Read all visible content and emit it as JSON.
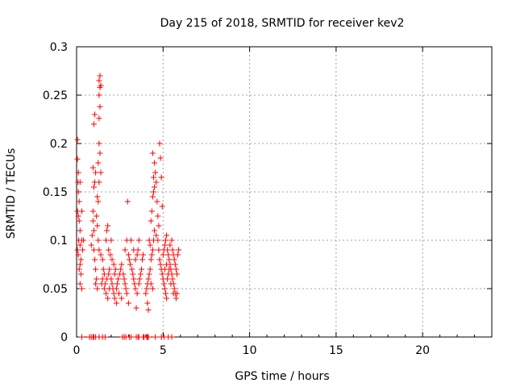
{
  "chart_data": {
    "type": "scatter",
    "title": "Day 215 of 2018, SRMTID for receiver kev2",
    "xlabel": "GPS time / hours",
    "ylabel": "SRMTID / TECUs",
    "xlim": [
      0,
      24
    ],
    "ylim": [
      0,
      0.3
    ],
    "xticks": [
      0,
      5,
      10,
      15,
      20
    ],
    "xtick_labels": [
      "0",
      "5",
      "10",
      "15",
      "20"
    ],
    "yticks": [
      0,
      0.05,
      0.1,
      0.15,
      0.2,
      0.25,
      0.3
    ],
    "ytick_labels": [
      "0",
      "0.05",
      "0.1",
      "0.15",
      "0.2",
      "0.25",
      "0.3"
    ],
    "grid": true,
    "marker": "+",
    "series": [
      {
        "name": "kev2",
        "color": "#ff0000",
        "points": [
          [
            0.05,
            0.204
          ],
          [
            0.05,
            0.184
          ],
          [
            0.08,
            0.16
          ],
          [
            0.1,
            0.15
          ],
          [
            0.05,
            0.13
          ],
          [
            0.1,
            0.125
          ],
          [
            0.15,
            0.12
          ],
          [
            0.2,
            0.11
          ],
          [
            0.12,
            0.1
          ],
          [
            0.2,
            0.095
          ],
          [
            0.05,
            0.09
          ],
          [
            0.1,
            0.085
          ],
          [
            0.25,
            0.08
          ],
          [
            0.2,
            0.075
          ],
          [
            0.15,
            0.07
          ],
          [
            0.25,
            0.065
          ],
          [
            0.2,
            0.055
          ],
          [
            0.3,
            0.05
          ],
          [
            0.3,
            0.1
          ],
          [
            0.35,
            0.09
          ],
          [
            0.3,
            0.13
          ],
          [
            0.4,
            0.1
          ],
          [
            0.15,
            0.14
          ],
          [
            0.2,
            0.16
          ],
          [
            0.1,
            0.17
          ],
          [
            0.85,
            0.095
          ],
          [
            0.9,
            0.105
          ],
          [
            0.95,
            0.12
          ],
          [
            0.95,
            0.13
          ],
          [
            1.0,
            0.11
          ],
          [
            1.0,
            0.09
          ],
          [
            1.05,
            0.08
          ],
          [
            1.1,
            0.07
          ],
          [
            1.15,
            0.06
          ],
          [
            1.1,
            0.055
          ],
          [
            1.2,
            0.05
          ],
          [
            1.0,
            0.155
          ],
          [
            1.05,
            0.16
          ],
          [
            1.1,
            0.17
          ],
          [
            0.95,
            0.175
          ],
          [
            1.0,
            0.22
          ],
          [
            1.05,
            0.23
          ],
          [
            1.2,
            0.145
          ],
          [
            1.25,
            0.14
          ],
          [
            1.3,
            0.25
          ],
          [
            1.3,
            0.265
          ],
          [
            1.35,
            0.27
          ],
          [
            1.35,
            0.258
          ],
          [
            1.4,
            0.26
          ],
          [
            1.35,
            0.238
          ],
          [
            1.3,
            0.226
          ],
          [
            1.3,
            0.2
          ],
          [
            1.35,
            0.19
          ],
          [
            1.25,
            0.18
          ],
          [
            1.4,
            0.17
          ],
          [
            1.3,
            0.16
          ],
          [
            1.15,
            0.125
          ],
          [
            1.2,
            0.115
          ],
          [
            1.25,
            0.1
          ],
          [
            1.3,
            0.09
          ],
          [
            1.4,
            0.085
          ],
          [
            1.5,
            0.08
          ],
          [
            1.55,
            0.07
          ],
          [
            1.6,
            0.065
          ],
          [
            1.5,
            0.06
          ],
          [
            1.45,
            0.055
          ],
          [
            1.6,
            0.05
          ],
          [
            1.7,
            0.045
          ],
          [
            1.8,
            0.04
          ],
          [
            1.65,
            0.055
          ],
          [
            1.75,
            0.06
          ],
          [
            1.85,
            0.065
          ],
          [
            1.9,
            0.07
          ],
          [
            2.0,
            0.06
          ],
          [
            2.05,
            0.055
          ],
          [
            2.1,
            0.05
          ],
          [
            2.15,
            0.045
          ],
          [
            2.2,
            0.04
          ],
          [
            2.3,
            0.05
          ],
          [
            2.35,
            0.055
          ],
          [
            2.4,
            0.06
          ],
          [
            2.5,
            0.065
          ],
          [
            2.55,
            0.07
          ],
          [
            2.6,
            0.075
          ],
          [
            2.7,
            0.065
          ],
          [
            2.75,
            0.06
          ],
          [
            2.8,
            0.055
          ],
          [
            1.7,
            0.1
          ],
          [
            1.75,
            0.11
          ],
          [
            1.8,
            0.115
          ],
          [
            1.85,
            0.09
          ],
          [
            1.95,
            0.085
          ],
          [
            2.05,
            0.08
          ],
          [
            2.15,
            0.075
          ],
          [
            2.25,
            0.07
          ],
          [
            2.0,
            0.1
          ],
          [
            2.45,
            0.045
          ],
          [
            2.6,
            0.04
          ],
          [
            2.3,
            0.035
          ],
          [
            2.2,
            0.065
          ],
          [
            1.9,
            0.05
          ],
          [
            2.8,
            0.09
          ],
          [
            2.9,
            0.1
          ],
          [
            2.95,
            0.14
          ],
          [
            3.0,
            0.085
          ],
          [
            3.05,
            0.08
          ],
          [
            3.1,
            0.075
          ],
          [
            3.2,
            0.07
          ],
          [
            3.25,
            0.065
          ],
          [
            3.3,
            0.06
          ],
          [
            3.35,
            0.055
          ],
          [
            3.4,
            0.05
          ],
          [
            3.5,
            0.045
          ],
          [
            3.45,
            0.03
          ],
          [
            3.6,
            0.055
          ],
          [
            3.65,
            0.06
          ],
          [
            3.7,
            0.065
          ],
          [
            3.75,
            0.07
          ],
          [
            3.8,
            0.08
          ],
          [
            3.85,
            0.085
          ],
          [
            3.5,
            0.085
          ],
          [
            3.55,
            0.09
          ],
          [
            3.15,
            0.1
          ],
          [
            2.85,
            0.05
          ],
          [
            2.9,
            0.045
          ],
          [
            3.0,
            0.035
          ],
          [
            3.3,
            0.09
          ],
          [
            3.6,
            0.1
          ],
          [
            3.4,
            0.08
          ],
          [
            4.0,
            0.045
          ],
          [
            4.05,
            0.05
          ],
          [
            4.1,
            0.055
          ],
          [
            4.15,
            0.06
          ],
          [
            4.2,
            0.065
          ],
          [
            4.1,
            0.035
          ],
          [
            4.15,
            0.028
          ],
          [
            4.25,
            0.07
          ],
          [
            4.3,
            0.08
          ],
          [
            4.35,
            0.085
          ],
          [
            4.4,
            0.09
          ],
          [
            4.45,
            0.1
          ],
          [
            4.3,
            0.12
          ],
          [
            4.35,
            0.13
          ],
          [
            4.4,
            0.145
          ],
          [
            4.45,
            0.15
          ],
          [
            4.5,
            0.155
          ],
          [
            4.45,
            0.165
          ],
          [
            4.5,
            0.18
          ],
          [
            4.4,
            0.19
          ],
          [
            4.55,
            0.17
          ],
          [
            4.6,
            0.16
          ],
          [
            4.65,
            0.14
          ],
          [
            4.7,
            0.125
          ],
          [
            4.75,
            0.115
          ],
          [
            4.8,
            0.2
          ],
          [
            4.85,
            0.185
          ],
          [
            4.9,
            0.165
          ],
          [
            4.95,
            0.135
          ],
          [
            4.7,
            0.1
          ],
          [
            4.75,
            0.09
          ],
          [
            4.8,
            0.08
          ],
          [
            4.85,
            0.075
          ],
          [
            4.9,
            0.07
          ],
          [
            4.95,
            0.065
          ],
          [
            5.0,
            0.06
          ],
          [
            5.05,
            0.055
          ],
          [
            5.1,
            0.05
          ],
          [
            5.15,
            0.045
          ],
          [
            5.2,
            0.04
          ],
          [
            4.2,
            0.1
          ],
          [
            4.25,
            0.095
          ],
          [
            4.5,
            0.11
          ],
          [
            4.6,
            0.105
          ],
          [
            4.3,
            0.055
          ],
          [
            4.4,
            0.05
          ],
          [
            5.0,
            0.085
          ],
          [
            5.05,
            0.09
          ],
          [
            5.1,
            0.095
          ],
          [
            5.15,
            0.1
          ],
          [
            5.2,
            0.105
          ],
          [
            5.25,
            0.09
          ],
          [
            5.3,
            0.085
          ],
          [
            5.35,
            0.08
          ],
          [
            5.4,
            0.075
          ],
          [
            5.45,
            0.07
          ],
          [
            5.5,
            0.065
          ],
          [
            5.55,
            0.06
          ],
          [
            5.6,
            0.055
          ],
          [
            5.65,
            0.05
          ],
          [
            5.7,
            0.045
          ],
          [
            5.75,
            0.04
          ],
          [
            5.4,
            0.095
          ],
          [
            5.5,
            0.1
          ],
          [
            5.55,
            0.09
          ],
          [
            5.6,
            0.085
          ],
          [
            5.65,
            0.08
          ],
          [
            5.7,
            0.075
          ],
          [
            5.75,
            0.07
          ],
          [
            5.8,
            0.065
          ],
          [
            5.85,
            0.085
          ],
          [
            5.9,
            0.09
          ],
          [
            5.25,
            0.06
          ],
          [
            5.3,
            0.065
          ],
          [
            5.35,
            0.07
          ],
          [
            5.45,
            0.055
          ],
          [
            5.2,
            0.075
          ],
          [
            5.1,
            0.07
          ],
          [
            5.6,
            0.045
          ],
          [
            5.8,
            0.045
          ]
        ],
        "zero_points": [
          0.3,
          0.75,
          0.85,
          0.95,
          1.0,
          1.1,
          1.3,
          1.5,
          1.65,
          2.65,
          2.75,
          2.85,
          3.05,
          3.15,
          3.45,
          3.55,
          3.6,
          3.85,
          3.9,
          4.05,
          4.1,
          4.15,
          4.55,
          4.9,
          5.05,
          5.3,
          5.5
        ]
      }
    ]
  }
}
